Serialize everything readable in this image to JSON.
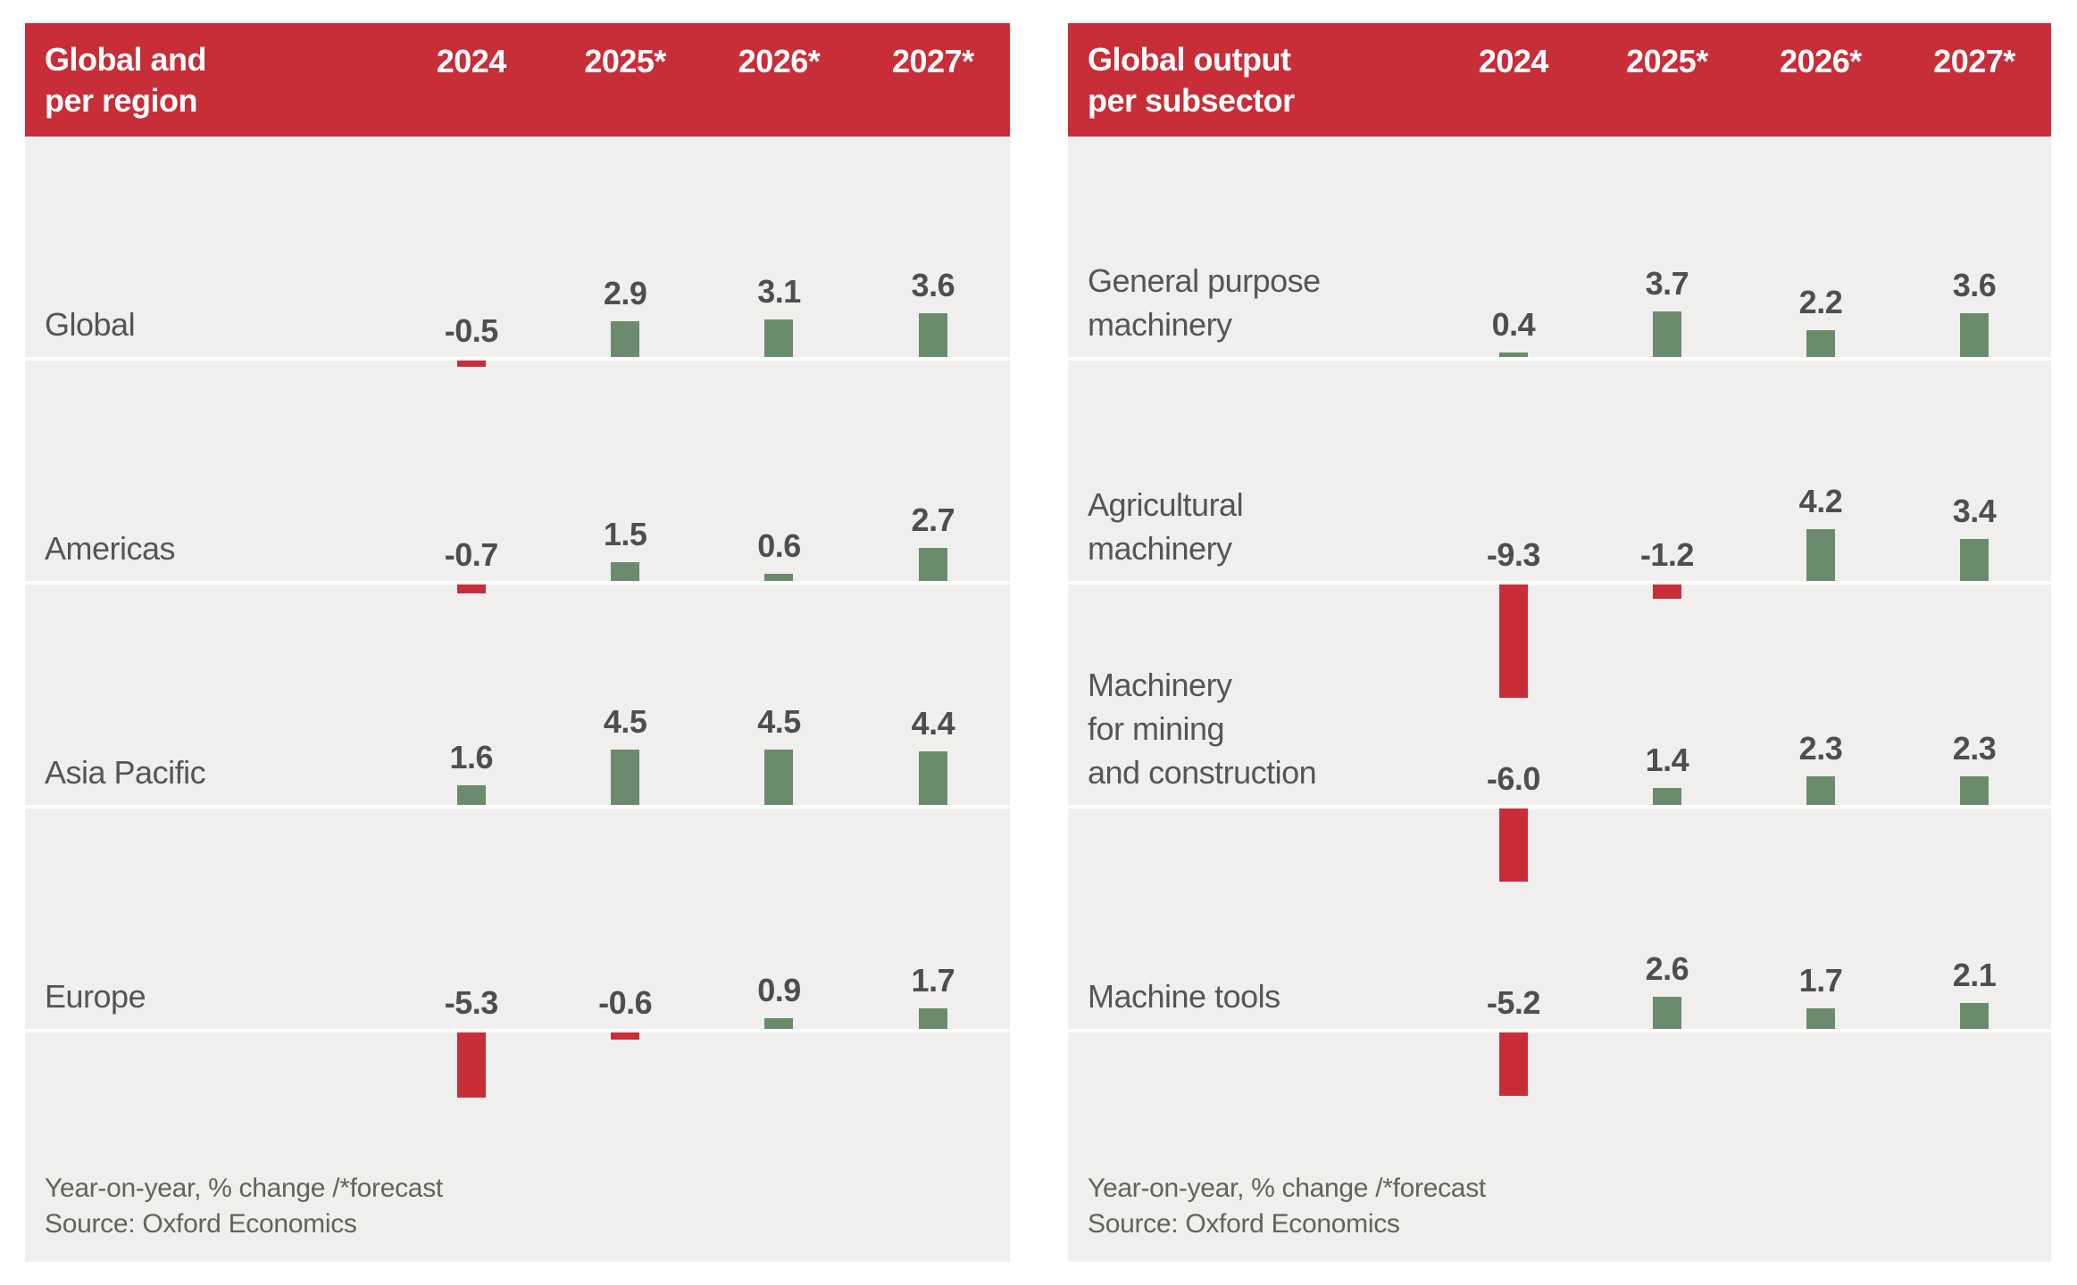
{
  "colors": {
    "header_bg": "#c72e38",
    "positive_bar": "#6b8b6d",
    "negative_bar": "#c72e38",
    "panel_bg": "#f0efed",
    "header_text": "#ffffff",
    "label_text": "#54555a",
    "value_text": "#4e4e4e",
    "footer_text": "#63625f",
    "baseline": "#ffffff"
  },
  "chart_data": [
    {
      "type": "bar",
      "title": "Global and per region",
      "title_lines": [
        "Global and",
        "per region"
      ],
      "columns": [
        "2024",
        "2025*",
        "2026*",
        "2027*"
      ],
      "rows": [
        {
          "label": "Global",
          "label_lines": [
            "Global"
          ],
          "values": [
            -0.5,
            2.9,
            3.1,
            3.6
          ]
        },
        {
          "label": "Americas",
          "label_lines": [
            "Americas"
          ],
          "values": [
            -0.7,
            1.5,
            0.6,
            2.7
          ]
        },
        {
          "label": "Asia Pacific",
          "label_lines": [
            "Asia Pacific"
          ],
          "values": [
            1.6,
            4.5,
            4.5,
            4.4
          ]
        },
        {
          "label": "Europe",
          "label_lines": [
            "Europe"
          ],
          "values": [
            -5.3,
            -0.6,
            0.9,
            1.7
          ]
        }
      ],
      "footnote": "Year-on-year, % change /*forecast",
      "source": "Source: Oxford Economics",
      "ylim": [
        -9.3,
        4.5
      ],
      "grid": false,
      "legend": "none"
    },
    {
      "type": "bar",
      "title": "Global output per subsector",
      "title_lines": [
        "Global output",
        "per subsector"
      ],
      "columns": [
        "2024",
        "2025*",
        "2026*",
        "2027*"
      ],
      "rows": [
        {
          "label": "General purpose machinery",
          "label_lines": [
            "General purpose",
            "machinery"
          ],
          "values": [
            0.4,
            3.7,
            2.2,
            3.6
          ]
        },
        {
          "label": "Agricultural machinery",
          "label_lines": [
            "Agricultural",
            "machinery"
          ],
          "values": [
            -9.3,
            -1.2,
            4.2,
            3.4
          ]
        },
        {
          "label": "Machinery for mining and construction",
          "label_lines": [
            "Machinery",
            "for mining",
            "and construction"
          ],
          "values": [
            -6.0,
            1.4,
            2.3,
            2.3
          ]
        },
        {
          "label": "Machine tools",
          "label_lines": [
            "Machine tools"
          ],
          "values": [
            -5.2,
            2.6,
            1.7,
            2.1
          ]
        }
      ],
      "footnote": "Year-on-year, % change /*forecast",
      "source": "Source: Oxford Economics",
      "ylim": [
        -9.3,
        4.2
      ],
      "grid": false,
      "legend": "none"
    }
  ]
}
